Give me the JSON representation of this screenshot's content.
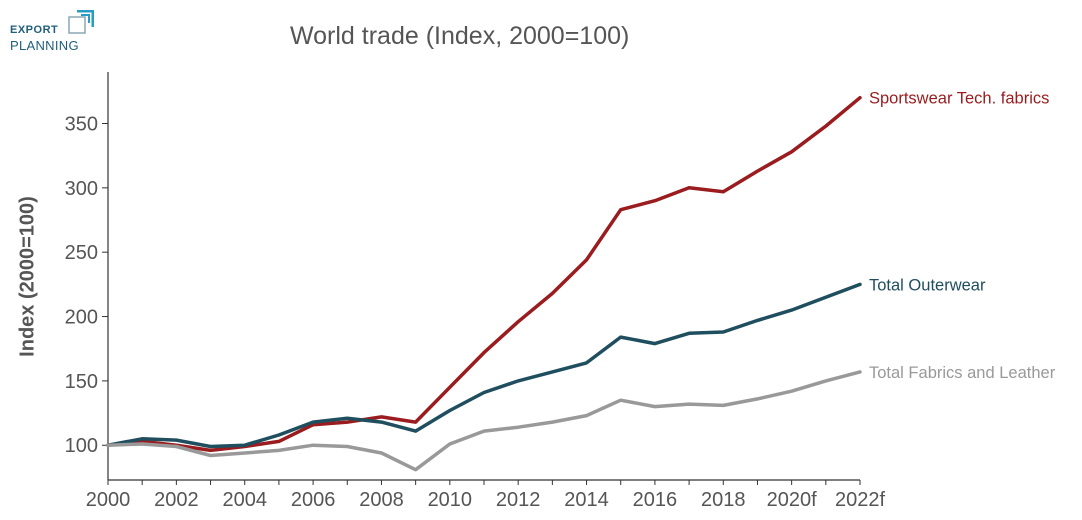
{
  "logo": {
    "line1": "EXPORT",
    "line2": "PLANNING"
  },
  "chart_data": {
    "type": "line",
    "title": "World trade (Index, 2000=100)",
    "ylabel": "Index (2000=100)",
    "xlabel": "",
    "x": [
      "2000",
      "2001",
      "2002",
      "2003",
      "2004",
      "2005",
      "2006",
      "2007",
      "2008",
      "2009",
      "2010",
      "2011",
      "2012",
      "2013",
      "2014",
      "2015",
      "2016",
      "2017",
      "2018",
      "2019",
      "2020f",
      "2021",
      "2022f"
    ],
    "xtick_labels": [
      "2000",
      "2002",
      "2004",
      "2006",
      "2008",
      "2010",
      "2012",
      "2014",
      "2016",
      "2018",
      "2020f",
      "2022f"
    ],
    "yticks": [
      100,
      150,
      200,
      250,
      300,
      350
    ],
    "ylim": [
      73,
      390
    ],
    "grid": false,
    "legend": "inline-right",
    "series": [
      {
        "name": "Sportswear Tech. fabrics",
        "color": "#9b1c1f",
        "values": [
          100,
          103,
          100,
          96,
          99,
          103,
          116,
          118,
          122,
          118,
          145,
          172,
          196,
          218,
          244,
          283,
          290,
          300,
          297,
          313,
          328,
          348,
          370
        ]
      },
      {
        "name": "Total Outerwear",
        "color": "#1f4e5f",
        "values": [
          100,
          105,
          104,
          99,
          100,
          108,
          118,
          121,
          118,
          111,
          127,
          141,
          150,
          157,
          164,
          184,
          179,
          187,
          188,
          197,
          205,
          215,
          225
        ]
      },
      {
        "name": "Total Fabrics and Leather",
        "color": "#999999",
        "values": [
          100,
          101,
          99,
          92,
          94,
          96,
          100,
          99,
          94,
          81,
          101,
          111,
          114,
          118,
          123,
          135,
          130,
          132,
          131,
          136,
          142,
          150,
          157
        ]
      }
    ]
  }
}
